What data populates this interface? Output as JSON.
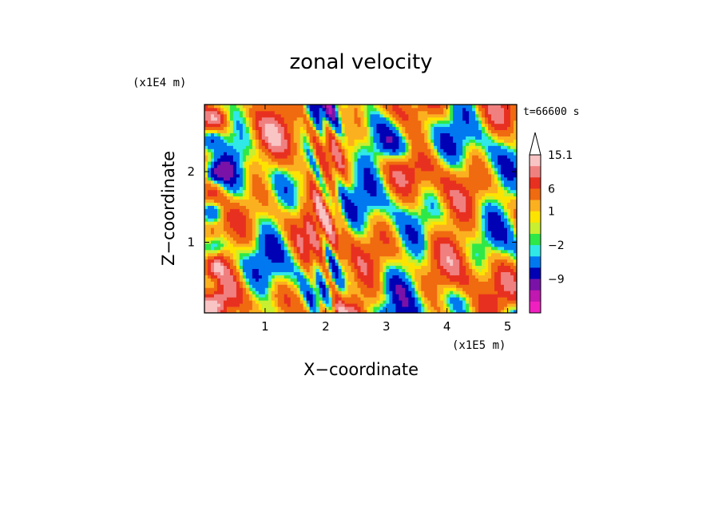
{
  "chart_data": {
    "type": "heatmap",
    "title": "zonal velocity",
    "xlabel": "X−coordinate",
    "ylabel": "Z−coordinate",
    "x_unit": "(x1E5 m)",
    "y_unit": "(x1E4 m)",
    "time_label": "t=66600 s",
    "x_range": [
      0,
      5.15
    ],
    "y_range": [
      0,
      2.95
    ],
    "x_ticks": [
      "1",
      "2",
      "3",
      "4",
      "5"
    ],
    "y_ticks": [
      "1",
      "2"
    ],
    "colorbar": {
      "labels": [
        "15.1",
        "6",
        "1",
        "−2",
        "−9"
      ],
      "levels_top_to_bottom": [
        15.1,
        12,
        9,
        6,
        3,
        1,
        0,
        -1,
        -2,
        -3,
        -6,
        -9,
        -12,
        -15.1
      ],
      "colors_top_to_bottom": [
        "#f9c4c4",
        "#f08080",
        "#e83020",
        "#f06a10",
        "#fbb020",
        "#fce400",
        "#c8ef30",
        "#2ee848",
        "#30e8e8",
        "#0078f0",
        "#0000b4",
        "#7a12a8",
        "#c018b0",
        "#f020c0"
      ]
    },
    "data_description_values": {
      "note_levels_shown": "field values range about −15 to 15"
    }
  }
}
